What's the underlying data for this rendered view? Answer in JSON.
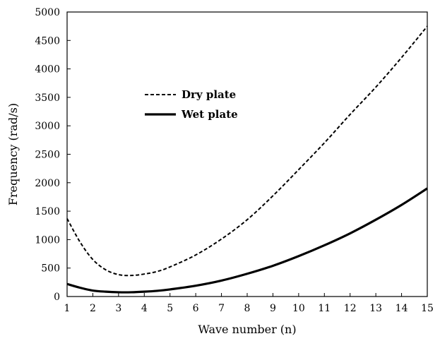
{
  "chart_data": {
    "type": "line",
    "title": "",
    "xlabel": "Wave number (n)",
    "ylabel": "Frequency (rad/s)",
    "xlim": [
      1,
      15
    ],
    "ylim": [
      0,
      5000
    ],
    "xticks": [
      1,
      2,
      3,
      4,
      5,
      6,
      7,
      8,
      9,
      10,
      11,
      12,
      13,
      14,
      15
    ],
    "yticks": [
      0,
      500,
      1000,
      1500,
      2000,
      2500,
      3000,
      3500,
      4000,
      4500,
      5000
    ],
    "grid": false,
    "legend_position": "upper-left-center",
    "series": [
      {
        "name": "Dry plate",
        "style": "dashed",
        "color": "#000000",
        "x": [
          1,
          1.5,
          2,
          2.5,
          3,
          3.5,
          4,
          4.5,
          5,
          6,
          7,
          8,
          9,
          10,
          11,
          12,
          13,
          14,
          15
        ],
        "y": [
          1370,
          960,
          650,
          470,
          385,
          370,
          395,
          440,
          520,
          730,
          1010,
          1350,
          1770,
          2230,
          2700,
          3200,
          3680,
          4200,
          4750
        ]
      },
      {
        "name": "Wet plate",
        "style": "solid",
        "color": "#000000",
        "x": [
          1,
          1.5,
          2,
          2.5,
          3,
          3.5,
          4,
          4.5,
          5,
          6,
          7,
          8,
          9,
          10,
          11,
          12,
          13,
          14,
          15
        ],
        "y": [
          220,
          155,
          105,
          85,
          75,
          75,
          85,
          100,
          125,
          190,
          280,
          400,
          540,
          710,
          900,
          1110,
          1350,
          1610,
          1900
        ]
      }
    ]
  }
}
